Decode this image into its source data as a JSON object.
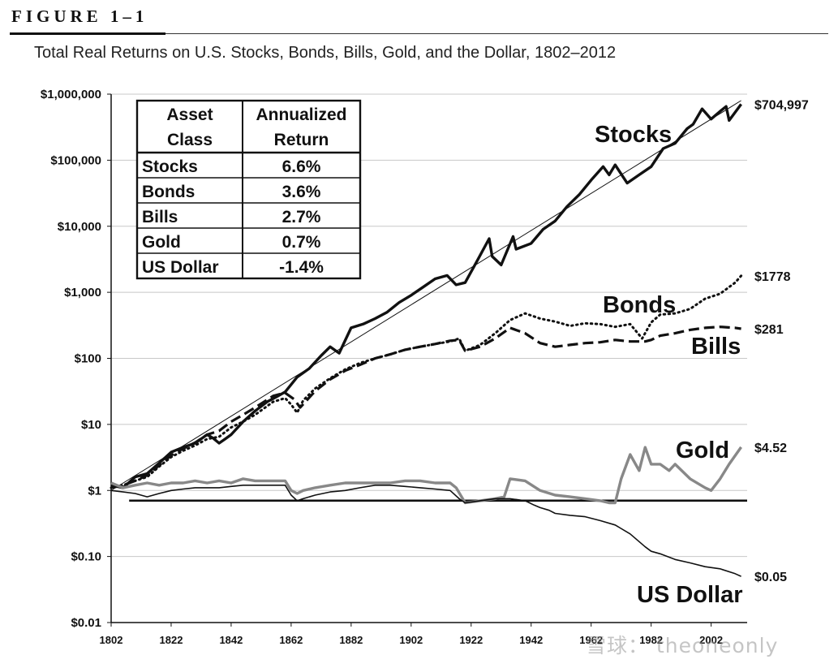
{
  "figure": {
    "label": "FIGURE 1–1",
    "caption": "Total Real Returns on U.S. Stocks, Bonds, Bills, Gold, and the Dollar, 1802–2012"
  },
  "watermark": "雪球： theoneonly",
  "chart_data": {
    "type": "line",
    "title": "Total Real Returns on U.S. Stocks, Bonds, Bills, Gold, and the Dollar, 1802–2012",
    "y_scale": "log",
    "ylim": [
      0.01,
      1000000
    ],
    "xlim": [
      1802,
      2014
    ],
    "grid": true,
    "y_ticks": [
      {
        "value": 1000000,
        "label": "$1,000,000"
      },
      {
        "value": 100000,
        "label": "$100,000"
      },
      {
        "value": 10000,
        "label": "$10,000"
      },
      {
        "value": 1000,
        "label": "$1,000"
      },
      {
        "value": 100,
        "label": "$100"
      },
      {
        "value": 10,
        "label": "$10"
      },
      {
        "value": 1,
        "label": "$1"
      },
      {
        "value": 0.1,
        "label": "$0.10"
      },
      {
        "value": 0.01,
        "label": "$0.01"
      }
    ],
    "x_ticks": [
      {
        "value": 1802,
        "label": "1802"
      },
      {
        "value": 1822,
        "label": "1822"
      },
      {
        "value": 1842,
        "label": "1842"
      },
      {
        "value": 1862,
        "label": "1862"
      },
      {
        "value": 1882,
        "label": "1882"
      },
      {
        "value": 1902,
        "label": "1902"
      },
      {
        "value": 1922,
        "label": "1922"
      },
      {
        "value": 1942,
        "label": "1942"
      },
      {
        "value": 1962,
        "label": "1962"
      },
      {
        "value": 1982,
        "label": "1982"
      },
      {
        "value": 2002,
        "label": "2002"
      }
    ],
    "reference_line": {
      "value": 0.7
    },
    "trend_line": {
      "from": [
        1802,
        1
      ],
      "to": [
        2012,
        800000
      ]
    },
    "series": [
      {
        "name": "Stocks",
        "end_label": "$704,997",
        "style": "solid-thick",
        "color": "#111111",
        "x": [
          1802,
          1806,
          1810,
          1814,
          1818,
          1822,
          1826,
          1830,
          1834,
          1836,
          1838,
          1840,
          1842,
          1846,
          1850,
          1854,
          1857,
          1860,
          1864,
          1868,
          1872,
          1875,
          1878,
          1882,
          1886,
          1890,
          1894,
          1898,
          1902,
          1906,
          1910,
          1914,
          1917,
          1920,
          1924,
          1928,
          1929,
          1932,
          1936,
          1937,
          1942,
          1946,
          1950,
          1954,
          1958,
          1962,
          1966,
          1968,
          1970,
          1974,
          1978,
          1982,
          1986,
          1990,
          1994,
          1996,
          1999,
          2002,
          2005,
          2007,
          2008,
          2012
        ],
        "y": [
          1.2,
          1.1,
          1.6,
          1.8,
          2.6,
          3.8,
          4.5,
          5.2,
          7.0,
          6.2,
          5.2,
          6.0,
          7.0,
          11,
          16,
          22,
          26,
          31,
          52,
          70,
          110,
          150,
          120,
          290,
          330,
          400,
          500,
          700,
          900,
          1200,
          1600,
          1800,
          1300,
          1400,
          3000,
          6500,
          3500,
          2600,
          7000,
          4500,
          5500,
          9000,
          12000,
          20000,
          30000,
          50000,
          80000,
          60000,
          85000,
          45000,
          60000,
          80000,
          150000,
          180000,
          300000,
          350000,
          600000,
          420000,
          550000,
          650000,
          400000,
          704997
        ]
      },
      {
        "name": "Bonds",
        "end_label": "$1778",
        "style": "dotted",
        "color": "#111111",
        "x": [
          1802,
          1806,
          1810,
          1814,
          1818,
          1822,
          1826,
          1830,
          1834,
          1838,
          1842,
          1846,
          1850,
          1856,
          1860,
          1862,
          1864,
          1866,
          1870,
          1875,
          1880,
          1885,
          1890,
          1895,
          1900,
          1905,
          1910,
          1915,
          1918,
          1920,
          1925,
          1930,
          1935,
          1940,
          1945,
          1950,
          1955,
          1960,
          1965,
          1970,
          1975,
          1979,
          1982,
          1985,
          1990,
          1995,
          2000,
          2005,
          2010,
          2012
        ],
        "y": [
          1.1,
          1.2,
          1.4,
          1.6,
          2.3,
          3.2,
          4.0,
          4.8,
          6.0,
          6.5,
          9.0,
          11,
          14,
          22,
          25,
          20,
          15,
          23,
          35,
          50,
          68,
          85,
          100,
          115,
          135,
          150,
          165,
          180,
          200,
          130,
          160,
          240,
          380,
          480,
          400,
          360,
          310,
          340,
          330,
          300,
          330,
          200,
          350,
          460,
          480,
          560,
          800,
          950,
          1400,
          1778
        ]
      },
      {
        "name": "Bills",
        "end_label": "$281",
        "style": "dashed",
        "color": "#111111",
        "x": [
          1802,
          1806,
          1810,
          1814,
          1818,
          1822,
          1826,
          1830,
          1834,
          1838,
          1842,
          1846,
          1850,
          1856,
          1860,
          1863,
          1865,
          1870,
          1875,
          1880,
          1885,
          1890,
          1895,
          1900,
          1905,
          1910,
          1915,
          1918,
          1920,
          1925,
          1930,
          1935,
          1940,
          1945,
          1950,
          1955,
          1960,
          1965,
          1970,
          1975,
          1980,
          1982,
          1985,
          1990,
          1995,
          2000,
          2005,
          2010,
          2012
        ],
        "y": [
          1.1,
          1.2,
          1.4,
          1.7,
          2.4,
          3.4,
          4.3,
          5.3,
          7.0,
          8.0,
          11,
          14,
          18,
          27,
          30,
          24,
          18,
          32,
          48,
          65,
          80,
          100,
          115,
          135,
          150,
          165,
          185,
          190,
          130,
          150,
          200,
          290,
          240,
          170,
          150,
          160,
          170,
          175,
          190,
          180,
          180,
          190,
          220,
          240,
          270,
          290,
          300,
          290,
          281
        ]
      },
      {
        "name": "Gold",
        "end_label": "$4.52",
        "style": "solid-gray",
        "color": "#888888",
        "x": [
          1802,
          1806,
          1810,
          1814,
          1818,
          1822,
          1826,
          1830,
          1834,
          1838,
          1842,
          1846,
          1850,
          1856,
          1860,
          1862,
          1864,
          1866,
          1870,
          1875,
          1880,
          1885,
          1890,
          1895,
          1900,
          1905,
          1910,
          1915,
          1917,
          1920,
          1925,
          1930,
          1933,
          1935,
          1940,
          1945,
          1950,
          1955,
          1960,
          1965,
          1968,
          1970,
          1972,
          1975,
          1978,
          1980,
          1982,
          1985,
          1988,
          1990,
          1995,
          2000,
          2002,
          2005,
          2008,
          2012
        ],
        "y": [
          1.3,
          1.1,
          1.2,
          1.3,
          1.2,
          1.3,
          1.3,
          1.4,
          1.3,
          1.4,
          1.3,
          1.5,
          1.4,
          1.4,
          1.4,
          1.0,
          0.9,
          1.0,
          1.1,
          1.2,
          1.3,
          1.3,
          1.3,
          1.3,
          1.4,
          1.4,
          1.3,
          1.3,
          1.1,
          0.65,
          0.7,
          0.75,
          0.8,
          1.5,
          1.4,
          1.0,
          0.85,
          0.8,
          0.75,
          0.7,
          0.65,
          0.65,
          1.5,
          3.5,
          2.0,
          4.5,
          2.5,
          2.5,
          2.0,
          2.5,
          1.5,
          1.1,
          1.0,
          1.5,
          2.5,
          4.52
        ]
      },
      {
        "name": "US Dollar",
        "end_label": "$0.05",
        "style": "solid-thin",
        "color": "#111111",
        "x": [
          1802,
          1806,
          1810,
          1814,
          1818,
          1822,
          1826,
          1830,
          1834,
          1838,
          1842,
          1846,
          1850,
          1856,
          1860,
          1862,
          1864,
          1866,
          1870,
          1875,
          1880,
          1885,
          1890,
          1895,
          1900,
          1905,
          1910,
          1915,
          1918,
          1920,
          1925,
          1930,
          1935,
          1940,
          1943,
          1945,
          1948,
          1950,
          1955,
          1960,
          1965,
          1970,
          1975,
          1980,
          1982,
          1985,
          1990,
          1995,
          2000,
          2005,
          2010,
          2012
        ],
        "y": [
          1.0,
          0.95,
          0.9,
          0.8,
          0.9,
          1.0,
          1.05,
          1.1,
          1.1,
          1.1,
          1.15,
          1.2,
          1.2,
          1.2,
          1.2,
          0.85,
          0.7,
          0.75,
          0.85,
          0.95,
          1.0,
          1.1,
          1.2,
          1.2,
          1.15,
          1.1,
          1.05,
          1.0,
          0.75,
          0.65,
          0.7,
          0.75,
          0.75,
          0.7,
          0.6,
          0.55,
          0.5,
          0.45,
          0.42,
          0.4,
          0.35,
          0.3,
          0.22,
          0.14,
          0.12,
          0.11,
          0.09,
          0.08,
          0.07,
          0.065,
          0.055,
          0.05
        ]
      }
    ],
    "table": {
      "headers": [
        [
          "Asset",
          "Class"
        ],
        [
          "Annualized",
          "Return"
        ]
      ],
      "rows": [
        {
          "asset": "Stocks",
          "return": "6.6%"
        },
        {
          "asset": "Bonds",
          "return": "3.6%"
        },
        {
          "asset": "Bills",
          "return": "2.7%"
        },
        {
          "asset": "Gold",
          "return": "0.7%"
        },
        {
          "asset": "US Dollar",
          "return": "-1.4%"
        }
      ]
    }
  }
}
